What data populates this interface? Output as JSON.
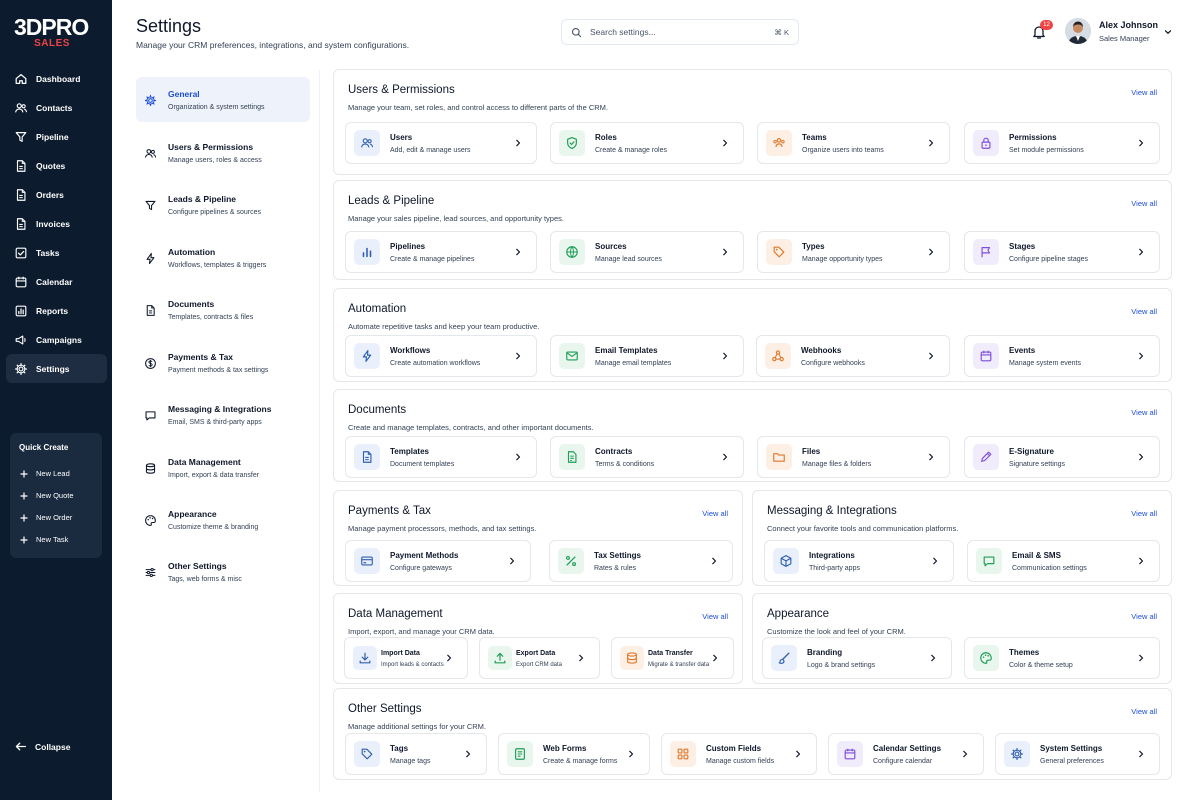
{
  "brand": {
    "name": "3DPRO",
    "sub": "SALES"
  },
  "nav": [
    {
      "label": "Dashboard",
      "icon": "home-icon"
    },
    {
      "label": "Contacts",
      "icon": "users-icon"
    },
    {
      "label": "Pipeline",
      "icon": "funnel-icon"
    },
    {
      "label": "Quotes",
      "icon": "document-icon"
    },
    {
      "label": "Orders",
      "icon": "document-icon"
    },
    {
      "label": "Invoices",
      "icon": "document-icon"
    },
    {
      "label": "Tasks",
      "icon": "checkbox-icon"
    },
    {
      "label": "Calendar",
      "icon": "calendar-icon"
    },
    {
      "label": "Reports",
      "icon": "chart-icon"
    },
    {
      "label": "Campaigns",
      "icon": "megaphone-icon"
    },
    {
      "label": "Settings",
      "icon": "gear-icon",
      "active": true
    }
  ],
  "quick_create": {
    "title": "Quick Create",
    "items": [
      "New Lead",
      "New Quote",
      "New Order",
      "New Task"
    ]
  },
  "collapse_label": "Collapse",
  "header": {
    "title": "Settings",
    "subtitle": "Manage your CRM preferences, integrations, and system configurations.",
    "search_placeholder": "Search settings...",
    "shortcut": "⌘ K",
    "notification_count": "12",
    "user_name": "Alex Johnson",
    "user_role": "Sales Manager"
  },
  "settings_nav": [
    {
      "title": "General",
      "sub": "Organization & system settings",
      "icon": "gear-icon",
      "active": true
    },
    {
      "title": "Users & Permissions",
      "sub": "Manage users, roles & access",
      "icon": "users-icon"
    },
    {
      "title": "Leads & Pipeline",
      "sub": "Configure pipelines & sources",
      "icon": "funnel-icon"
    },
    {
      "title": "Automation",
      "sub": "Workflows, templates & triggers",
      "icon": "bolt-icon"
    },
    {
      "title": "Documents",
      "sub": "Templates, contracts & files",
      "icon": "document-icon"
    },
    {
      "title": "Payments & Tax",
      "sub": "Payment methods & tax settings",
      "icon": "dollar-icon"
    },
    {
      "title": "Messaging & Integrations",
      "sub": "Email, SMS & third-party apps",
      "icon": "chat-icon"
    },
    {
      "title": "Data Management",
      "sub": "Import, export & data transfer",
      "icon": "database-icon"
    },
    {
      "title": "Appearance",
      "sub": "Customize theme & branding",
      "icon": "palette-icon"
    },
    {
      "title": "Other Settings",
      "sub": "Tags, web forms & misc",
      "icon": "sliders-icon"
    }
  ],
  "view_all_label": "View all",
  "sections": [
    {
      "id": "users",
      "title": "Users & Permissions",
      "sub": "Manage your team, set roles, and control access to different parts of the CRM.",
      "cards": [
        {
          "title": "Users",
          "sub": "Add, edit & manage users",
          "icon": "users-icon",
          "color": "blue"
        },
        {
          "title": "Roles",
          "sub": "Create & manage roles",
          "icon": "shield-icon",
          "color": "green"
        },
        {
          "title": "Teams",
          "sub": "Organize users into teams",
          "icon": "team-icon",
          "color": "orange"
        },
        {
          "title": "Permissions",
          "sub": "Set module permissions",
          "icon": "lock-icon",
          "color": "purple"
        }
      ]
    },
    {
      "id": "leads",
      "title": "Leads & Pipeline",
      "sub": "Manage your sales pipeline, lead sources, and opportunity types.",
      "cards": [
        {
          "title": "Pipelines",
          "sub": "Create & manage pipelines",
          "icon": "bar-chart-icon",
          "color": "blue"
        },
        {
          "title": "Sources",
          "sub": "Manage lead sources",
          "icon": "globe-icon",
          "color": "green"
        },
        {
          "title": "Types",
          "sub": "Manage opportunity types",
          "icon": "tag-icon",
          "color": "orange"
        },
        {
          "title": "Stages",
          "sub": "Configure pipeline stages",
          "icon": "flag-icon",
          "color": "purple"
        }
      ]
    },
    {
      "id": "automation",
      "title": "Automation",
      "sub": "Automate repetitive tasks and keep your team productive.",
      "cards": [
        {
          "title": "Workflows",
          "sub": "Create automation workflows",
          "icon": "bolt-icon",
          "color": "blue"
        },
        {
          "title": "Email Templates",
          "sub": "Manage email templates",
          "icon": "mail-icon",
          "color": "green"
        },
        {
          "title": "Webhooks",
          "sub": "Configure webhooks",
          "icon": "webhook-icon",
          "color": "orange"
        },
        {
          "title": "Events",
          "sub": "Manage system events",
          "icon": "calendar-icon",
          "color": "purple"
        }
      ]
    },
    {
      "id": "documents",
      "title": "Documents",
      "sub": "Create and manage templates, contracts, and other important documents.",
      "cards": [
        {
          "title": "Templates",
          "sub": "Document templates",
          "icon": "document-icon",
          "color": "blue"
        },
        {
          "title": "Contracts",
          "sub": "Terms & conditions",
          "icon": "contract-icon",
          "color": "green"
        },
        {
          "title": "Files",
          "sub": "Manage files & folders",
          "icon": "folder-icon",
          "color": "orange"
        },
        {
          "title": "E-Signature",
          "sub": "Signature settings",
          "icon": "pen-icon",
          "color": "purple"
        }
      ]
    },
    {
      "id": "payments",
      "title": "Payments & Tax",
      "sub": "Manage payment processors, methods, and tax settings.",
      "cards": [
        {
          "title": "Payment Methods",
          "sub": "Configure gateways",
          "icon": "card-icon",
          "color": "blue"
        },
        {
          "title": "Tax Settings",
          "sub": "Rates & rules",
          "icon": "percent-icon",
          "color": "green"
        }
      ]
    },
    {
      "id": "messaging",
      "title": "Messaging & Integrations",
      "sub": "Connect your favorite tools and communication platforms.",
      "cards": [
        {
          "title": "Integrations",
          "sub": "Third-party apps",
          "icon": "cube-icon",
          "color": "blue"
        },
        {
          "title": "Email & SMS",
          "sub": "Communication settings",
          "icon": "chat-icon",
          "color": "green"
        }
      ]
    },
    {
      "id": "data",
      "title": "Data Management",
      "sub": "Import, export, and manage your CRM data.",
      "cards": [
        {
          "title": "Import Data",
          "sub": "Import leads & contacts",
          "icon": "download-icon",
          "color": "blue"
        },
        {
          "title": "Export Data",
          "sub": "Export CRM data",
          "icon": "upload-icon",
          "color": "green"
        },
        {
          "title": "Data Transfer",
          "sub": "Migrate & transfer data",
          "icon": "database-icon",
          "color": "orange"
        }
      ]
    },
    {
      "id": "appearance",
      "title": "Appearance",
      "sub": "Customize the look and feel of your CRM.",
      "cards": [
        {
          "title": "Branding",
          "sub": "Logo & brand settings",
          "icon": "brush-icon",
          "color": "blue"
        },
        {
          "title": "Themes",
          "sub": "Color & theme setup",
          "icon": "palette-icon",
          "color": "green"
        }
      ]
    },
    {
      "id": "other",
      "title": "Other Settings",
      "sub": "Manage additional settings for your CRM.",
      "cards": [
        {
          "title": "Tags",
          "sub": "Manage tags",
          "icon": "tag-icon",
          "color": "blue"
        },
        {
          "title": "Web Forms",
          "sub": "Create & manage forms",
          "icon": "form-icon",
          "color": "green"
        },
        {
          "title": "Custom Fields",
          "sub": "Manage custom fields",
          "icon": "grid-icon",
          "color": "orange"
        },
        {
          "title": "Calendar Settings",
          "sub": "Configure calendar",
          "icon": "calendar-icon",
          "color": "purple"
        },
        {
          "title": "System Settings",
          "sub": "General preferences",
          "icon": "gear-icon",
          "color": "blue"
        }
      ]
    }
  ],
  "colors": {
    "blue": "#2f5fb3",
    "green": "#1f9d55",
    "orange": "#e0772b",
    "purple": "#7c4ddb",
    "sidebar": "#0d1b2e",
    "accent": "#1d4ed8",
    "badge": "#ef4444"
  }
}
